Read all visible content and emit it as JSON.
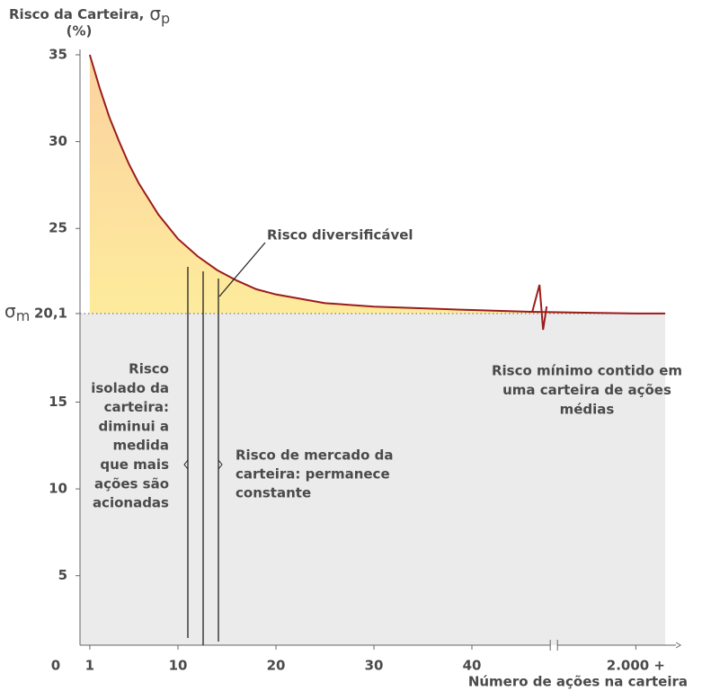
{
  "chart_data": {
    "type": "area",
    "y_label": {
      "text": "Risco da Carteira,",
      "symbol": "σ",
      "subscript": "p",
      "unit": "(%)"
    },
    "x_label": "Número de ações na carteira",
    "x": [
      1,
      2,
      3,
      4,
      5,
      6,
      8,
      10,
      12,
      14,
      16,
      18,
      20,
      25,
      30,
      35,
      40,
      46,
      2000,
      2003
    ],
    "series": [
      {
        "name": "Risco da Carteira",
        "color": "#9b1c1c",
        "values": [
          35,
          33.1,
          31.4,
          30.0,
          28.7,
          27.6,
          25.8,
          24.4,
          23.4,
          22.6,
          22.0,
          21.5,
          21.2,
          20.7,
          20.5,
          20.4,
          20.3,
          20.2,
          20.1,
          20.1
        ]
      }
    ],
    "xlim": [
      0,
      2003
    ],
    "axis_break": [
      48,
      1992
    ],
    "ylim": [
      1,
      35
    ],
    "xticks": [
      0,
      1,
      10,
      20,
      30,
      40,
      {
        "value": 2000,
        "label": "2.000 +"
      }
    ],
    "yticks": [
      5,
      10,
      15,
      {
        "value": 20.1,
        "label": "20,1"
      },
      25,
      30,
      35
    ],
    "market_risk_symbol": {
      "symbol": "σ",
      "subscript": "m"
    },
    "area_colors": [
      "#fcd2a0",
      "#fdeb9c"
    ],
    "below_color": "#ebebeb",
    "annotations": {
      "diversifiable": "Risco diversificável",
      "isolated": [
        "Risco",
        "isolado da",
        "carteira:",
        "diminui a",
        "medida",
        "que mais",
        "ações são",
        "acionadas"
      ],
      "market": [
        "Risco de mercado da",
        "carteira: permanece",
        "constante"
      ],
      "minimum": [
        "Risco mínimo contido em",
        "uma carteira de ações",
        "médias"
      ]
    }
  }
}
